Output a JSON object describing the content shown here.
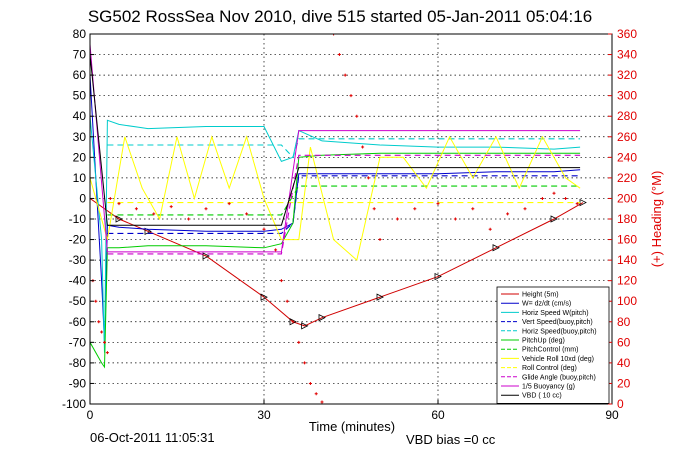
{
  "chart_data": {
    "type": "line",
    "title": "SG502 RossSea Nov 2010, dive 515 started 05-Jan-2011 05:04:16",
    "xlabel": "Time (minutes)",
    "ylabel_right": "(+) Heading (°M)",
    "xlim": [
      0,
      90
    ],
    "ylim": [
      -100,
      80
    ],
    "ylim_right": [
      0,
      360
    ],
    "xticks": [
      0,
      30,
      60,
      90
    ],
    "yticks": [
      -100,
      -90,
      -80,
      -70,
      -60,
      -50,
      -40,
      -30,
      -20,
      -10,
      0,
      10,
      20,
      30,
      40,
      50,
      60,
      70,
      80
    ],
    "yticks_right": [
      0,
      20,
      40,
      60,
      80,
      100,
      120,
      140,
      160,
      180,
      200,
      220,
      240,
      260,
      280,
      300,
      320,
      340,
      360
    ],
    "grid": true,
    "legend_position": "bottom-right",
    "footer_date": "06-Oct-2011 11:05:31",
    "footer_note": "VBD bias =0 cc",
    "colors": {
      "height": "#d00000",
      "w": "#0000cc",
      "hspeed": "#00cccc",
      "green": "#00cc00",
      "yellow": "#ffff00",
      "magenta": "#cc00cc",
      "vbd": "#000000",
      "heading": "#e00000"
    },
    "series": [
      {
        "name": "Height (5m)",
        "key": "height",
        "style": "solid",
        "x": [
          0,
          5,
          10,
          20,
          30,
          35,
          37,
          40,
          50,
          60,
          70,
          80,
          85
        ],
        "y": [
          0,
          -10,
          -16,
          -28,
          -48,
          -60,
          -62,
          -58,
          -48,
          -38,
          -24,
          -10,
          -2
        ]
      },
      {
        "name": "W= dz/dt (cm/s)",
        "key": "w",
        "style": "solid",
        "x": [
          0,
          2,
          2.5,
          3,
          5,
          10,
          20,
          30,
          33,
          35,
          36,
          40,
          50,
          60,
          70,
          80,
          84.5
        ],
        "y": [
          60,
          -40,
          -70,
          -13,
          -14,
          -15,
          -16,
          -16,
          -15,
          -12,
          12,
          12,
          12,
          12,
          13,
          13,
          14
        ]
      },
      {
        "name": "Horiz Speed W(pitch)",
        "key": "hspeed",
        "style": "solid",
        "x": [
          0,
          2,
          2.5,
          3,
          5,
          10,
          20,
          30,
          33,
          35,
          36,
          40,
          50,
          60,
          70,
          80,
          84.5
        ],
        "y": [
          40,
          -20,
          -75,
          38,
          36,
          34,
          35,
          35,
          18,
          20,
          33,
          28,
          26,
          25,
          25,
          24,
          25
        ]
      },
      {
        "name": "Vert Speed(buoy,pitch)",
        "key": "w",
        "style": "dashed",
        "x": [
          3,
          33,
          35,
          36,
          84.5
        ],
        "y": [
          -17,
          -17,
          -12,
          11,
          11
        ]
      },
      {
        "name": "Horiz Speed(buoy,pitch)",
        "key": "hspeed",
        "style": "dashed",
        "x": [
          3,
          33,
          35,
          36,
          84.5
        ],
        "y": [
          26,
          26,
          20,
          29,
          29
        ]
      },
      {
        "name": "PitchUp (deg)",
        "key": "green",
        "style": "solid",
        "x": [
          0,
          2,
          2.5,
          3,
          5,
          10,
          20,
          30,
          33,
          35,
          36,
          40,
          50,
          60,
          70,
          80,
          84.5
        ],
        "y": [
          -70,
          -80,
          -82,
          -24,
          -24,
          -23,
          -23,
          -24,
          -22,
          -12,
          20,
          21,
          22,
          22,
          22,
          22,
          22
        ]
      },
      {
        "name": "PitchControl (mm)",
        "key": "green",
        "style": "dashed",
        "x": [
          3,
          33,
          36,
          84.5
        ],
        "y": [
          -8,
          -8,
          6,
          6
        ]
      },
      {
        "name": "Vehicle Roll 10xd (deg)",
        "key": "yellow",
        "style": "solid",
        "x": [
          0,
          3,
          6,
          9,
          12,
          15,
          18,
          21,
          24,
          27,
          30,
          33,
          36,
          38,
          42,
          46,
          50,
          54,
          58,
          62,
          66,
          70,
          74,
          78,
          82,
          84.5
        ],
        "y": [
          10,
          -20,
          30,
          5,
          -10,
          30,
          0,
          30,
          5,
          30,
          0,
          -20,
          -20,
          25,
          -20,
          -30,
          20,
          20,
          5,
          30,
          10,
          30,
          5,
          30,
          10,
          5
        ]
      },
      {
        "name": "Roll Control (deg)",
        "key": "yellow",
        "style": "dashed",
        "x": [
          3,
          84.5
        ],
        "y": [
          -2,
          -2
        ]
      },
      {
        "name": "Glide Angle (buoy,pitch)",
        "key": "magenta",
        "style": "dashed",
        "x": [
          3,
          33,
          36,
          84.5
        ],
        "y": [
          -27,
          -27,
          21,
          21
        ]
      },
      {
        "name": "1/5 Buoyancy (g)",
        "key": "magenta",
        "style": "solid",
        "x": [
          0,
          3,
          33,
          36,
          84.5
        ],
        "y": [
          75,
          -26,
          -26,
          33,
          33
        ]
      },
      {
        "name": "VBD ( 10 cc)",
        "key": "vbd",
        "style": "solid",
        "x": [
          0,
          3,
          33,
          36,
          84.5
        ],
        "y": [
          70,
          -13,
          -13,
          15,
          15
        ]
      }
    ],
    "heading_points": {
      "name": "(+) Heading (°M)",
      "x": [
        0.5,
        1,
        1.5,
        2,
        2.5,
        3,
        3.5,
        5,
        8,
        11,
        14,
        17,
        20,
        24,
        27,
        30,
        32,
        33,
        34,
        35,
        36,
        37,
        38,
        39,
        40,
        41,
        42,
        43,
        44,
        45,
        46,
        47,
        48,
        49,
        50,
        53,
        56,
        60,
        63,
        66,
        69,
        72,
        75,
        78,
        80,
        82,
        84
      ],
      "y": [
        120,
        100,
        80,
        70,
        60,
        50,
        200,
        195,
        190,
        185,
        192,
        180,
        190,
        195,
        185,
        170,
        150,
        120,
        100,
        80,
        60,
        40,
        20,
        10,
        2,
        380,
        360,
        340,
        320,
        300,
        280,
        250,
        220,
        190,
        160,
        180,
        190,
        195,
        180,
        190,
        170,
        185,
        190,
        200,
        205,
        200,
        195
      ]
    }
  }
}
